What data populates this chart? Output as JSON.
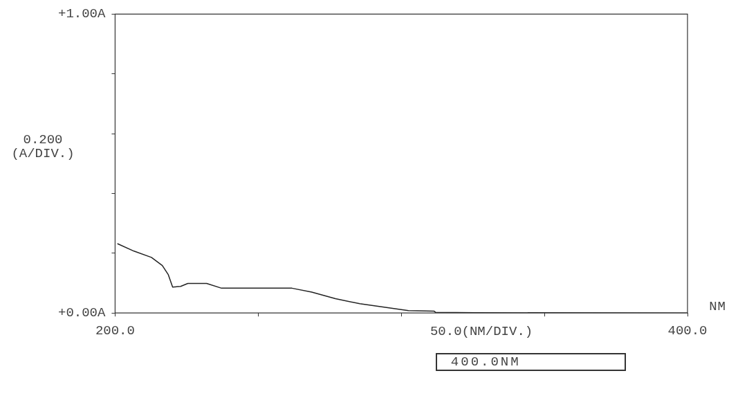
{
  "chart_data": {
    "type": "line",
    "xlabel": "50.0(NM/DIV.)",
    "ylabel": "0.200 (A/DIV.)",
    "x": [
      200.8,
      206.6,
      212.7,
      216.5,
      218.6,
      220.1,
      222.9,
      225.4,
      232,
      237.2,
      261.8,
      268.7,
      277,
      285.5,
      295.7,
      302.5,
      311.5,
      312,
      326,
      400
    ],
    "series": [
      {
        "color": "#222222",
        "values": [
          0.232,
          0.207,
          0.186,
          0.159,
          0.128,
          0.087,
          0.089,
          0.099,
          0.099,
          0.083,
          0.083,
          0.07,
          0.048,
          0.031,
          0.017,
          0.008,
          0.006,
          0.002,
          0.001,
          0
        ]
      }
    ],
    "xlim": [
      200,
      400
    ],
    "xticks": [
      {
        "value": 200,
        "label": "200.0"
      },
      {
        "value": 250,
        "label": null
      },
      {
        "value": 300,
        "label": null
      },
      {
        "value": 350,
        "label": null
      },
      {
        "value": 400,
        "label": "400.0"
      }
    ],
    "ylim": [
      0,
      1
    ],
    "yticks": [
      {
        "value": 0,
        "label": "+0.00A"
      },
      {
        "value": 0.2,
        "label": null
      },
      {
        "value": 0.4,
        "label": null
      },
      {
        "value": 0.6,
        "label": null
      },
      {
        "value": 0.8,
        "label": null
      },
      {
        "value": 1,
        "label": "+1.00A"
      }
    ],
    "annotations": [
      "NM",
      "400.0NM"
    ],
    "grid": false,
    "legend": false,
    "marker": "none",
    "line_style": "solid"
  }
}
